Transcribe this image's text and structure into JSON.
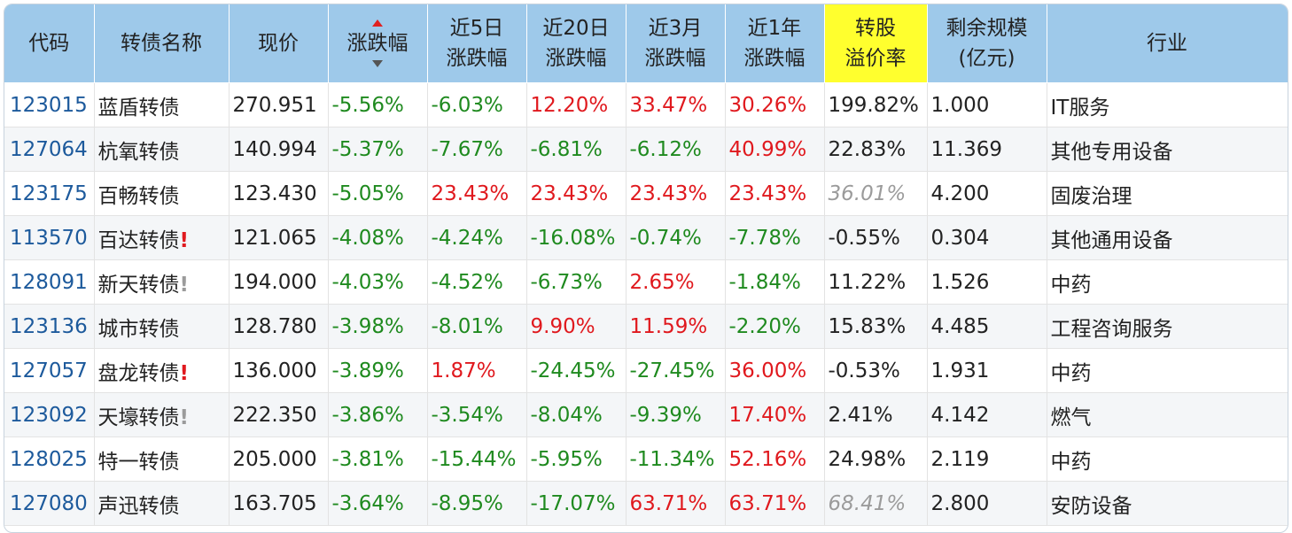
{
  "colors": {
    "header_bg": "#9ec9ea",
    "highlight_header_bg": "#ffff2e",
    "up": "#e0191e",
    "down": "#1f8a1f",
    "code": "#1d5a9c",
    "muted": "#9b9b9b"
  },
  "headers": {
    "code": "代码",
    "name": "转债名称",
    "price": "现价",
    "change": "涨跌幅",
    "d5_l1": "近5日",
    "d5_l2": "涨跌幅",
    "d20_l1": "近20日",
    "d20_l2": "涨跌幅",
    "m3_l1": "近3月",
    "m3_l2": "涨跌幅",
    "y1_l1": "近1年",
    "y1_l2": "涨跌幅",
    "premium_l1": "转股",
    "premium_l2": "溢价率",
    "scale_l1": "剩余规模",
    "scale_l2": "(亿元)",
    "industry": "行业"
  },
  "sort_indicator": {
    "icon": "sort-up-down-icon",
    "active": "desc"
  },
  "rows": [
    {
      "code": "123015",
      "name": "蓝盾转债",
      "flag": "",
      "flag_type": "",
      "price": "270.951",
      "change": "-5.56%",
      "d5": "-6.03%",
      "d20": "12.20%",
      "m3": "33.47%",
      "y1": "30.26%",
      "premium": "199.82%",
      "premium_muted": false,
      "scale": "1.000",
      "industry": "IT服务"
    },
    {
      "code": "127064",
      "name": "杭氧转债",
      "flag": "",
      "flag_type": "",
      "price": "140.994",
      "change": "-5.37%",
      "d5": "-7.67%",
      "d20": "-6.81%",
      "m3": "-6.12%",
      "y1": "40.99%",
      "premium": "22.83%",
      "premium_muted": false,
      "scale": "11.369",
      "industry": "其他专用设备"
    },
    {
      "code": "123175",
      "name": "百畅转债",
      "flag": "",
      "flag_type": "",
      "price": "123.430",
      "change": "-5.05%",
      "d5": "23.43%",
      "d20": "23.43%",
      "m3": "23.43%",
      "y1": "23.43%",
      "premium": "36.01%",
      "premium_muted": true,
      "scale": "4.200",
      "industry": "固废治理"
    },
    {
      "code": "113570",
      "name": "百达转债",
      "flag": "!",
      "flag_type": "red",
      "price": "121.065",
      "change": "-4.08%",
      "d5": "-4.24%",
      "d20": "-16.08%",
      "m3": "-0.74%",
      "y1": "-7.78%",
      "premium": "-0.55%",
      "premium_muted": false,
      "scale": "0.304",
      "industry": "其他通用设备"
    },
    {
      "code": "128091",
      "name": "新天转债",
      "flag": "!",
      "flag_type": "gray",
      "price": "194.000",
      "change": "-4.03%",
      "d5": "-4.52%",
      "d20": "-6.73%",
      "m3": "2.65%",
      "y1": "-1.84%",
      "premium": "11.22%",
      "premium_muted": false,
      "scale": "1.526",
      "industry": "中药"
    },
    {
      "code": "123136",
      "name": "城市转债",
      "flag": "",
      "flag_type": "",
      "price": "128.780",
      "change": "-3.98%",
      "d5": "-8.01%",
      "d20": "9.90%",
      "m3": "11.59%",
      "y1": "-2.20%",
      "premium": "15.83%",
      "premium_muted": false,
      "scale": "4.485",
      "industry": "工程咨询服务"
    },
    {
      "code": "127057",
      "name": "盘龙转债",
      "flag": "!",
      "flag_type": "red",
      "price": "136.000",
      "change": "-3.89%",
      "d5": "1.87%",
      "d20": "-24.45%",
      "m3": "-27.45%",
      "y1": "36.00%",
      "premium": "-0.53%",
      "premium_muted": false,
      "scale": "1.931",
      "industry": "中药"
    },
    {
      "code": "123092",
      "name": "天壕转债",
      "flag": "!",
      "flag_type": "gray",
      "price": "222.350",
      "change": "-3.86%",
      "d5": "-3.54%",
      "d20": "-8.04%",
      "m3": "-9.39%",
      "y1": "17.40%",
      "premium": "2.41%",
      "premium_muted": false,
      "scale": "4.142",
      "industry": "燃气"
    },
    {
      "code": "128025",
      "name": "特一转债",
      "flag": "",
      "flag_type": "",
      "price": "205.000",
      "change": "-3.81%",
      "d5": "-15.44%",
      "d20": "-5.95%",
      "m3": "-11.34%",
      "y1": "52.16%",
      "premium": "24.98%",
      "premium_muted": false,
      "scale": "2.119",
      "industry": "中药"
    },
    {
      "code": "127080",
      "name": "声迅转债",
      "flag": "",
      "flag_type": "",
      "price": "163.705",
      "change": "-3.64%",
      "d5": "-8.95%",
      "d20": "-17.07%",
      "m3": "63.71%",
      "y1": "63.71%",
      "premium": "68.41%",
      "premium_muted": true,
      "scale": "2.800",
      "industry": "安防设备"
    }
  ]
}
